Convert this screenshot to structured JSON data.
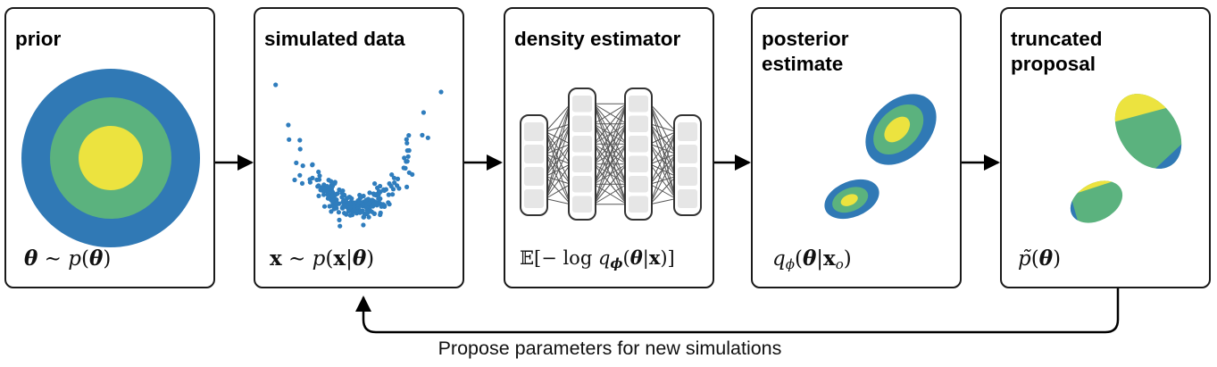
{
  "panels": {
    "prior": {
      "title": "prior"
    },
    "simulated": {
      "title": "simulated data"
    },
    "density": {
      "title": "density estimator"
    },
    "posterior": {
      "title_line1": "posterior",
      "title_line2": "estimate"
    },
    "truncated": {
      "title_line1": "truncated",
      "title_line2": "proposal"
    }
  },
  "caption": "Propose parameters for new simulations",
  "colors": {
    "blue": "#3079b5",
    "green": "#5bb27e",
    "yellow": "#ece33f",
    "scatter": "#2f7dbd",
    "network_node": "#e6e6e6",
    "network_edge": "#555555"
  },
  "icons": [
    "flow-arrow-icon",
    "neural-network-icon",
    "scatter-plot-icon",
    "concentric-circles-icon"
  ]
}
